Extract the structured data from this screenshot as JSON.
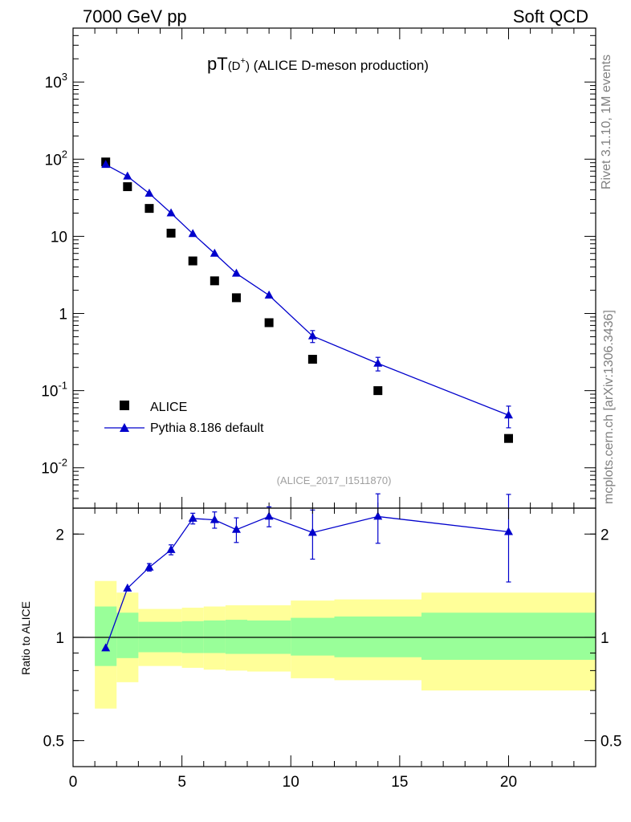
{
  "header": {
    "left": "7000 GeV pp",
    "right": "Soft QCD"
  },
  "title": {
    "main": "pT",
    "paren_open": "(D",
    "sup": "+",
    "paren_close": ")",
    "rest": " (ALICE D-meson production)"
  },
  "side_labels": {
    "rivet": "Rivet 3.1.10,  1M events",
    "mcplots": "mcplots.cern.ch [arXiv:1306.3436]"
  },
  "analysis_id": "(ALICE_2017_I1511870)",
  "legend": {
    "data_label": "ALICE",
    "mc_label": "Pythia 8.186 default"
  },
  "ratio_ylabel": "Ratio to ALICE",
  "colors": {
    "mc": "#0000cc",
    "data": "#000000",
    "band_inner": "#99ff99",
    "band_outer": "#ffff99",
    "side_text": "#808080"
  },
  "chart_data": [
    {
      "type": "scatter",
      "panel": "main",
      "yscale": "log",
      "xlim": [
        0,
        24
      ],
      "ylim": [
        0.003,
        5000
      ],
      "yticks": [
        {
          "value": 0.01,
          "base": "10",
          "exp": "-2"
        },
        {
          "value": 0.1,
          "base": "10",
          "exp": "-1"
        },
        {
          "value": 1,
          "base": "1",
          "exp": ""
        },
        {
          "value": 10,
          "base": "10",
          "exp": ""
        },
        {
          "value": 100,
          "base": "10",
          "exp": "2"
        },
        {
          "value": 1000,
          "base": "10",
          "exp": "3"
        }
      ],
      "series": [
        {
          "name": "ALICE",
          "marker": "square",
          "x": [
            1.5,
            2.5,
            3.5,
            4.5,
            5.5,
            6.5,
            7.5,
            9,
            11,
            14,
            20
          ],
          "y": [
            92,
            44,
            23,
            11,
            4.8,
            2.65,
            1.6,
            0.76,
            0.255,
            0.1,
            0.024
          ]
        },
        {
          "name": "Pythia 8.186 default",
          "marker": "triangle",
          "x": [
            1.5,
            2.5,
            3.5,
            4.5,
            5.5,
            6.5,
            7.5,
            9,
            11,
            14,
            20
          ],
          "y": [
            85,
            60,
            36,
            20,
            10.8,
            6.0,
            3.3,
            1.72,
            0.51,
            0.225,
            0.048
          ],
          "yerr": [
            0,
            0,
            0,
            0,
            0,
            0,
            0,
            0,
            0.09,
            0.045,
            0.015
          ]
        }
      ]
    },
    {
      "type": "line",
      "panel": "ratio",
      "yscale": "log",
      "xlim": [
        0,
        24
      ],
      "ylim": [
        0.42,
        2.38
      ],
      "xticks": [
        0,
        5,
        10,
        15,
        20
      ],
      "yticks": [
        0.5,
        1,
        2
      ],
      "reference_line": 1,
      "bins": [
        {
          "x_low": 1,
          "x_high": 2,
          "inner": [
            0.825,
            1.23
          ],
          "outer": [
            0.62,
            1.46
          ]
        },
        {
          "x_low": 2,
          "x_high": 3,
          "inner": [
            0.87,
            1.18
          ],
          "outer": [
            0.74,
            1.35
          ]
        },
        {
          "x_low": 3,
          "x_high": 5,
          "inner": [
            0.905,
            1.11
          ],
          "outer": [
            0.825,
            1.21
          ]
        },
        {
          "x_low": 5,
          "x_high": 6,
          "inner": [
            0.9,
            1.115
          ],
          "outer": [
            0.815,
            1.22
          ]
        },
        {
          "x_low": 6,
          "x_high": 7,
          "inner": [
            0.9,
            1.12
          ],
          "outer": [
            0.805,
            1.23
          ]
        },
        {
          "x_low": 7,
          "x_high": 8,
          "inner": [
            0.895,
            1.125
          ],
          "outer": [
            0.8,
            1.24
          ]
        },
        {
          "x_low": 8,
          "x_high": 10,
          "inner": [
            0.895,
            1.12
          ],
          "outer": [
            0.795,
            1.24
          ]
        },
        {
          "x_low": 10,
          "x_high": 12,
          "inner": [
            0.885,
            1.14
          ],
          "outer": [
            0.76,
            1.28
          ]
        },
        {
          "x_low": 12,
          "x_high": 16,
          "inner": [
            0.875,
            1.15
          ],
          "outer": [
            0.75,
            1.29
          ]
        },
        {
          "x_low": 16,
          "x_high": 24,
          "inner": [
            0.86,
            1.18
          ],
          "outer": [
            0.7,
            1.35
          ]
        }
      ],
      "series": [
        {
          "name": "Pythia 8.186 default / ALICE",
          "x": [
            1.5,
            2.5,
            3.5,
            4.5,
            5.5,
            6.5,
            7.5,
            9,
            11,
            14,
            20
          ],
          "y": [
            0.93,
            1.39,
            1.6,
            1.8,
            2.22,
            2.2,
            2.06,
            2.25,
            2.02,
            2.25,
            2.03
          ],
          "yerr": [
            0,
            0,
            0.04,
            0.06,
            0.08,
            0.12,
            0.17,
            0.15,
            0.33,
            0.37,
            0.58
          ]
        }
      ]
    }
  ]
}
